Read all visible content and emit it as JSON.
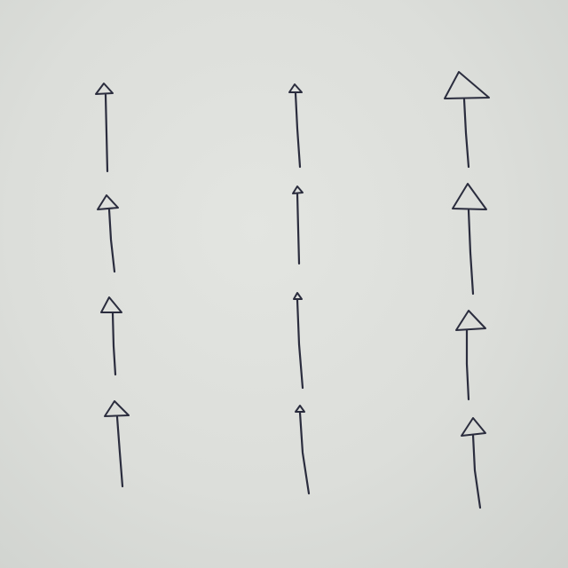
{
  "diagram": {
    "kind": "hand-drawn arrows on paper",
    "direction": "up",
    "ink_color": "#2b2d3e",
    "paper_color": "#dcdeda",
    "columns": [
      {
        "name": "left",
        "arrow_count": 4,
        "head_size": "small"
      },
      {
        "name": "middle",
        "arrow_count": 4,
        "head_size": "tiny"
      },
      {
        "name": "right",
        "arrow_count": 4,
        "head_size": "large"
      }
    ]
  }
}
